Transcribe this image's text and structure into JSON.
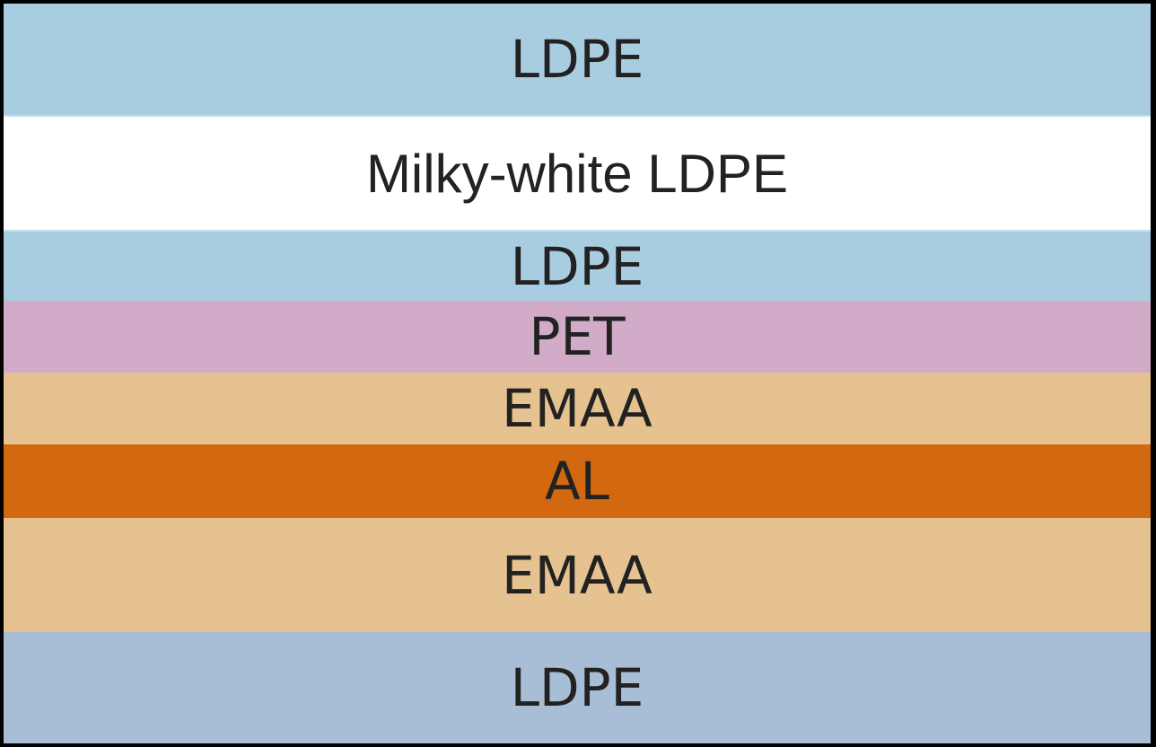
{
  "layers": [
    {
      "label": "LDPE"
    },
    {
      "label": "Milky-white LDPE"
    },
    {
      "label": "LDPE"
    },
    {
      "label": "PET"
    },
    {
      "label": "EMAA"
    },
    {
      "label": "AL"
    },
    {
      "label": "EMAA"
    },
    {
      "label": "LDPE"
    }
  ]
}
